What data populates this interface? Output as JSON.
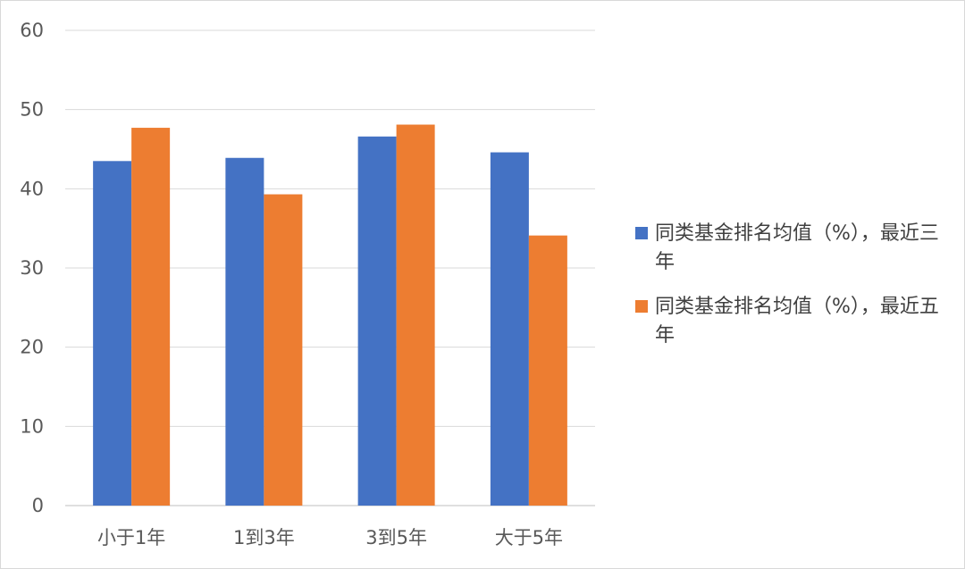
{
  "chart_data": {
    "type": "bar",
    "title": "",
    "xlabel": "",
    "ylabel": "",
    "categories": [
      "小于1年",
      "1到3年",
      "3到5年",
      "大于5年"
    ],
    "ylim": [
      0,
      60
    ],
    "yticks": [
      0,
      10,
      20,
      30,
      40,
      50,
      60
    ],
    "grid": true,
    "legend_position": "right",
    "series": [
      {
        "name": "同类基金排名均值（%），最近三年",
        "color": "#4472C4",
        "values": [
          43.5,
          43.9,
          46.6,
          44.6
        ]
      },
      {
        "name": "同类基金排名均值（%），最近五年",
        "color": "#ED7D31",
        "values": [
          47.7,
          39.3,
          48.1,
          34.1
        ]
      }
    ]
  }
}
